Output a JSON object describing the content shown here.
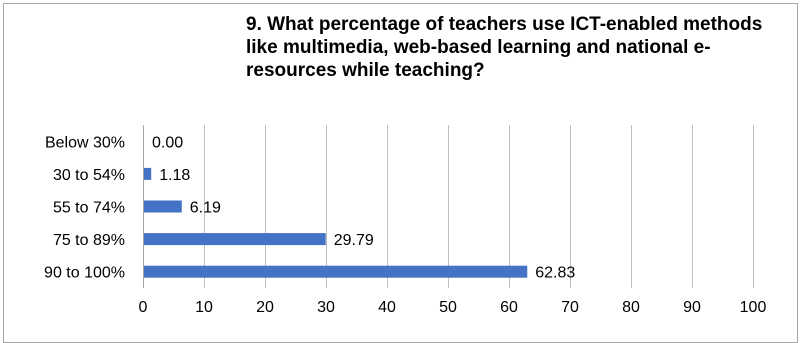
{
  "chart_data": {
    "type": "bar",
    "orientation": "horizontal",
    "title": "9. What percentage of teachers use ICT-enabled methods like multimedia, web-based learning and national e-resources while teaching?",
    "xlabel": "",
    "ylabel": "",
    "categories": [
      "Below 30%",
      "30 to 54%",
      "55 to 74%",
      "75 to 89%",
      "90 to 100%"
    ],
    "values": [
      0.0,
      1.18,
      6.19,
      29.79,
      62.83
    ],
    "value_labels": [
      "0.00",
      "1.18",
      "6.19",
      "29.79",
      "62.83"
    ],
    "xlim": [
      0,
      100
    ],
    "xticks": [
      0,
      10,
      20,
      30,
      40,
      50,
      60,
      70,
      80,
      90,
      100
    ],
    "grid": true,
    "legend": "none",
    "bar_color": "#4472c4",
    "grid_color": "#bfbfbf"
  }
}
